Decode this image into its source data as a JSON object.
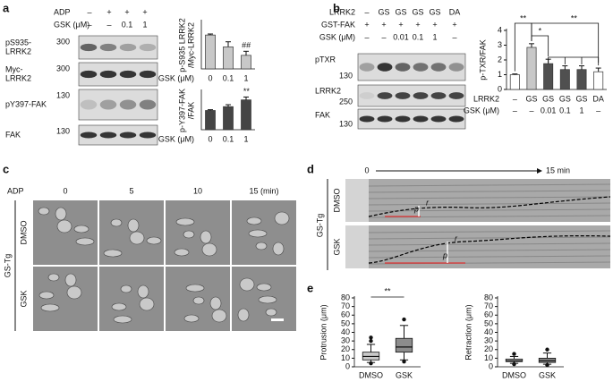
{
  "panel_labels": [
    "a",
    "b",
    "c",
    "d",
    "e"
  ],
  "panel_a": {
    "header": [
      {
        "label": "ADP",
        "values": [
          "–",
          "+",
          "+",
          "+"
        ]
      },
      {
        "label": "GSK (μM)",
        "values": [
          "–",
          "–",
          "0.1",
          "1"
        ]
      }
    ],
    "blots": [
      {
        "label": [
          "pS935-",
          "LRRK2"
        ],
        "mw": "300"
      },
      {
        "label": [
          "Myc-",
          "LRRK2"
        ],
        "mw": "300"
      },
      {
        "label": [
          "pY397-FAK"
        ],
        "mw": "130"
      },
      {
        "label": [
          "FAK"
        ],
        "mw": "130"
      }
    ]
  },
  "panel_b": {
    "header": [
      {
        "label": "LRRK2",
        "values": [
          "–",
          "GS",
          "GS",
          "GS",
          "GS",
          "DA"
        ]
      },
      {
        "label": "GST-FAK",
        "values": [
          "+",
          "+",
          "+",
          "+",
          "+",
          "+"
        ]
      },
      {
        "label": "GSK (μM)",
        "values": [
          "–",
          "–",
          "0.01",
          "0.1",
          "1",
          "–"
        ]
      }
    ],
    "blots": [
      {
        "label": [
          "pTXR"
        ],
        "mw": "130"
      },
      {
        "label": [
          "LRRK2"
        ],
        "mw": "250"
      },
      {
        "label": [
          "FAK"
        ],
        "mw": "130"
      }
    ]
  },
  "panel_c": {
    "treatment": "ADP",
    "times": [
      "0",
      "5",
      "10",
      "15 (min)"
    ],
    "group": "GS-Tg",
    "rows": [
      "DMSO",
      "GSK"
    ]
  },
  "panel_d": {
    "start": "0",
    "end": "15 min",
    "group": "GS-Tg",
    "rows": [
      "DMSO",
      "GSK"
    ],
    "markers": [
      "r",
      "p"
    ]
  },
  "chart_data": [
    {
      "type": "bar",
      "y_label": [
        "p-S935 LRRK2",
        "/Myc-LRRK2"
      ],
      "x_label": "GSK (μM)",
      "categories": [
        "0",
        "0.1",
        "1"
      ],
      "values": [
        1.0,
        0.65,
        0.4
      ],
      "errors": [
        0.03,
        0.15,
        0.12
      ],
      "annotations": [
        null,
        null,
        "##"
      ],
      "colors": [
        "#c8c8c8",
        "#c8c8c8",
        "#c8c8c8"
      ],
      "ylim": [
        0,
        1.4
      ]
    },
    {
      "type": "bar",
      "y_label": [
        "p-Y397-FAK",
        "/FAK"
      ],
      "x_label": "GSK (μM)",
      "categories": [
        "0",
        "0.1",
        "1"
      ],
      "values": [
        1.0,
        1.2,
        1.55
      ],
      "errors": [
        0.04,
        0.1,
        0.15
      ],
      "annotations": [
        null,
        null,
        "**"
      ],
      "colors": [
        "#454545",
        "#454545",
        "#454545"
      ],
      "ylim": [
        0,
        2
      ]
    },
    {
      "type": "bar",
      "y_label": [
        "p-TXR/FAK"
      ],
      "x_label": "LRRK2",
      "x_label2": "GSK (μM)",
      "categories": [
        "–",
        "GS",
        "GS",
        "GS",
        "GS",
        "DA"
      ],
      "categories2": [
        "–",
        "–",
        "0.01",
        "0.1",
        "1",
        "–"
      ],
      "values": [
        1.0,
        2.85,
        1.75,
        1.35,
        1.35,
        1.2
      ],
      "errors": [
        0.05,
        0.25,
        0.3,
        0.25,
        0.25,
        0.25
      ],
      "brackets": [
        "**",
        "*",
        "**"
      ],
      "colors": [
        "#ffffff",
        "#c8c8c8",
        "#505050",
        "#505050",
        "#505050",
        "#ffffff"
      ],
      "ylim": [
        0,
        4
      ],
      "yticks": [
        0,
        1,
        2,
        3,
        4
      ]
    },
    {
      "type": "box",
      "y_label": [
        "Protrusion (μm)"
      ],
      "categories": [
        "DMSO",
        "GSK"
      ],
      "boxes": [
        {
          "whisker_low": 5,
          "q1": 8,
          "median": 12,
          "q3": 17,
          "whisker_high": 26,
          "outliers": [
            30,
            34,
            4
          ]
        },
        {
          "whisker_low": 8,
          "q1": 17,
          "median": 23,
          "q3": 33,
          "whisker_high": 48,
          "outliers": [
            55,
            6
          ]
        }
      ],
      "bracket": "**",
      "colors": [
        "#c8c8c8",
        "#8c8c8c"
      ],
      "ylim": [
        0,
        80
      ],
      "yticks": [
        0,
        10,
        20,
        30,
        40,
        50,
        60,
        70,
        80
      ]
    },
    {
      "type": "box",
      "y_label": [
        "Retraction (μm)"
      ],
      "categories": [
        "DMSO",
        "GSK"
      ],
      "boxes": [
        {
          "whisker_low": 4,
          "q1": 6,
          "median": 7,
          "q3": 9,
          "whisker_high": 12,
          "outliers": [
            15,
            3
          ]
        },
        {
          "whisker_low": 3,
          "q1": 5,
          "median": 7,
          "q3": 10,
          "whisker_high": 16,
          "outliers": [
            20,
            2
          ]
        }
      ],
      "colors": [
        "#c8c8c8",
        "#8c8c8c"
      ],
      "ylim": [
        0,
        80
      ],
      "yticks": [
        0,
        10,
        20,
        30,
        40,
        50,
        60,
        70,
        80
      ]
    }
  ]
}
